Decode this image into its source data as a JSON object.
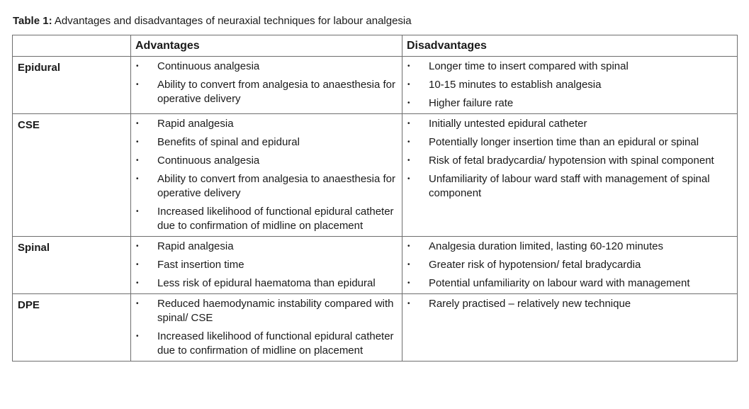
{
  "caption": {
    "label": "Table 1:",
    "text": " Advantages and disadvantages of neuraxial techniques for labour analgesia"
  },
  "table": {
    "headers": [
      "",
      "Advantages",
      "Disadvantages"
    ],
    "rows": [
      {
        "technique": "Epidural",
        "advantages": [
          "Continuous analgesia",
          "Ability to convert from analgesia to anaesthesia for operative delivery"
        ],
        "disadvantages": [
          "Longer time to insert compared with spinal",
          "10-15 minutes to establish analgesia",
          "Higher failure rate"
        ]
      },
      {
        "technique": "CSE",
        "advantages": [
          "Rapid analgesia",
          "Benefits of spinal and epidural",
          "Continuous analgesia",
          "Ability to convert from analgesia to anaesthesia for operative delivery",
          "Increased likelihood of functional epidural catheter due to confirmation of midline on placement"
        ],
        "disadvantages": [
          "Initially untested epidural catheter",
          "Potentially longer insertion time than an epidural or spinal",
          "Risk of fetal bradycardia/ hypotension with spinal component",
          "Unfamiliarity of labour ward staff with management of spinal component"
        ]
      },
      {
        "technique": "Spinal",
        "advantages": [
          "Rapid analgesia",
          "Fast insertion time",
          "Less risk of epidural haematoma than epidural"
        ],
        "disadvantages": [
          "Analgesia duration limited, lasting 60-120 minutes",
          "Greater risk of hypotension/ fetal bradycardia",
          "Potential unfamiliarity on labour ward with management"
        ]
      },
      {
        "technique": "DPE",
        "advantages": [
          "Reduced haemodynamic instability compared with spinal/ CSE",
          "Increased likelihood of functional epidural catheter due to confirmation of midline on placement"
        ],
        "disadvantages": [
          "Rarely practised – relatively new technique"
        ]
      }
    ]
  }
}
